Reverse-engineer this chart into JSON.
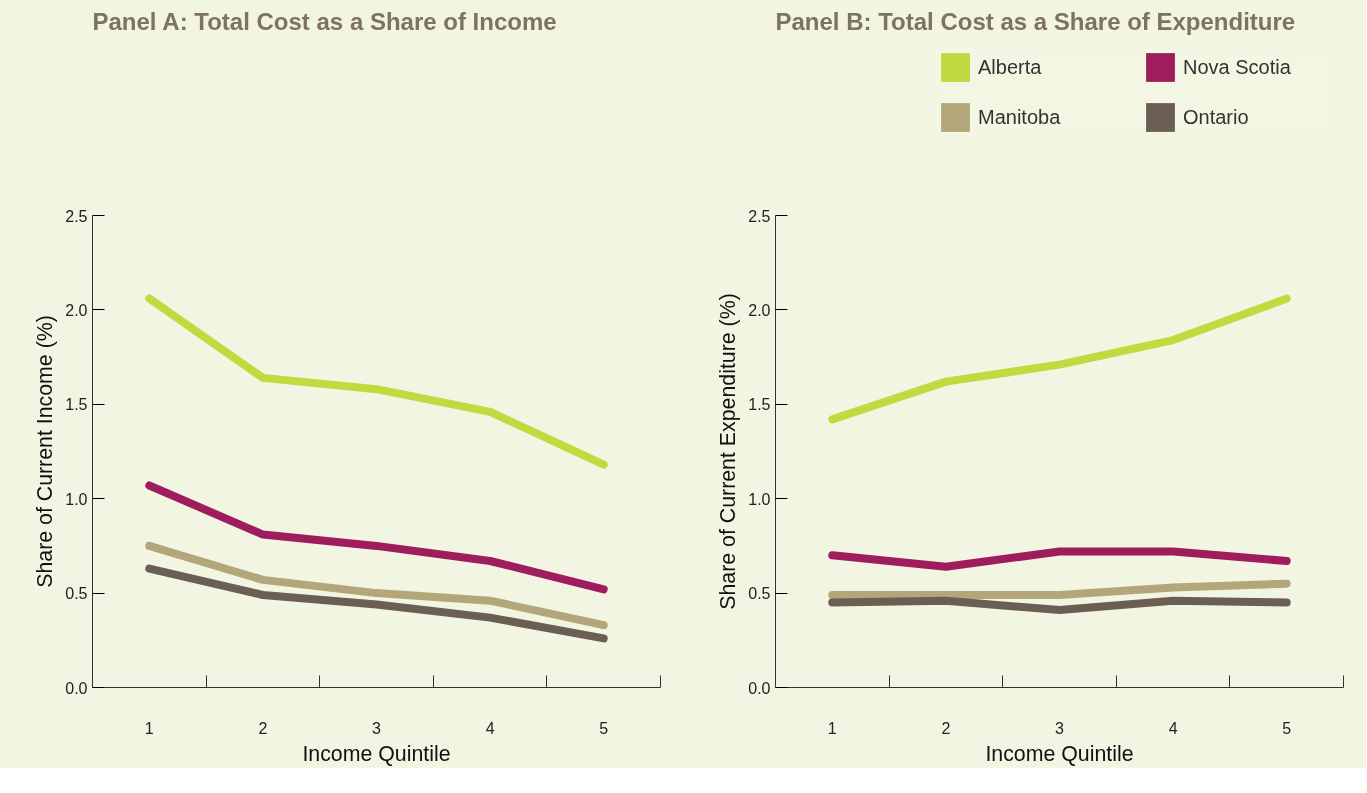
{
  "chart_data": [
    {
      "type": "line",
      "title": "Panel A: Total Cost as a Share of Income",
      "xlabel": "Income Quintile",
      "ylabel": "Share of Current Income (%)",
      "x": [
        1,
        2,
        3,
        4,
        5
      ],
      "xlim": [
        0.5,
        5.5
      ],
      "xticks": [
        1,
        2,
        3,
        4,
        5,
        {
          "value": 1.5,
          "label": null
        },
        {
          "value": 2.5,
          "label": null
        },
        {
          "value": 3.5,
          "label": null
        },
        {
          "value": 4.5,
          "label": null
        },
        {
          "value": 5.5,
          "label": null
        }
      ],
      "ylim": [
        0,
        2.5
      ],
      "yticks": [
        {
          "value": 0,
          "label": "0.0"
        },
        0.5,
        {
          "value": 1,
          "label": "1.0"
        },
        1.5,
        {
          "value": 2,
          "label": "2.0"
        },
        2.5
      ],
      "grid": false,
      "legend": false,
      "line_style": "solid",
      "marker": "none",
      "series": [
        {
          "color": "#c2d93f",
          "values": [
            2.06,
            1.64,
            1.58,
            1.46,
            1.18
          ]
        },
        {
          "color": "#b3a67a",
          "values": [
            0.75,
            0.57,
            0.5,
            0.46,
            0.33
          ]
        },
        {
          "color": "#9f1c5f",
          "values": [
            1.07,
            0.81,
            0.75,
            0.67,
            0.52
          ]
        },
        {
          "color": "#6b5f54",
          "values": [
            0.63,
            0.49,
            0.44,
            0.37,
            0.26
          ]
        }
      ]
    },
    {
      "type": "line",
      "title": "Panel B: Total Cost as a Share of Expenditure",
      "xlabel": "Income Quintile",
      "ylabel": "Share of Current Expenditure (%)",
      "x": [
        1,
        2,
        3,
        4,
        5
      ],
      "xlim": [
        0.5,
        5.5
      ],
      "xticks": [
        1,
        2,
        3,
        4,
        5,
        {
          "value": 1.5,
          "label": null
        },
        {
          "value": 2.5,
          "label": null
        },
        {
          "value": 3.5,
          "label": null
        },
        {
          "value": 4.5,
          "label": null
        },
        {
          "value": 5.5,
          "label": null
        }
      ],
      "ylim": [
        0,
        2.5
      ],
      "yticks": [
        {
          "value": 0,
          "label": "0.0"
        },
        0.5,
        {
          "value": 1,
          "label": "1.0"
        },
        1.5,
        {
          "value": 2,
          "label": "2.0"
        },
        2.5
      ],
      "grid": false,
      "legend": "top right",
      "line_style": "solid",
      "marker": "none",
      "series": [
        {
          "name": "Alberta",
          "color": "#c2d93f",
          "values": [
            1.42,
            1.62,
            1.71,
            1.84,
            2.06
          ]
        },
        {
          "name": "Manitoba",
          "color": "#b3a67a",
          "values": [
            0.49,
            0.49,
            0.49,
            0.53,
            0.55
          ]
        },
        {
          "name": "Nova Scotia",
          "color": "#9f1c5f",
          "values": [
            0.7,
            0.64,
            0.72,
            0.72,
            0.67
          ]
        },
        {
          "name": "Ontario",
          "color": "#6b5f54",
          "values": [
            0.45,
            0.46,
            0.41,
            0.46,
            0.45
          ]
        }
      ]
    }
  ]
}
